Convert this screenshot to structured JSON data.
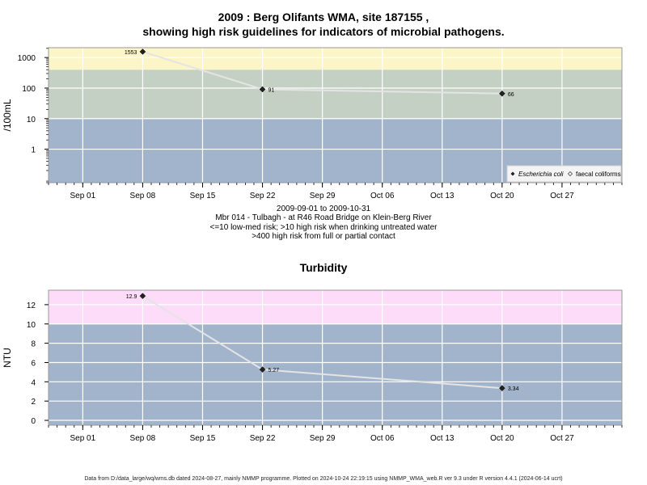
{
  "page": {
    "title_line1": "2009 : Berg Olifants WMA, site 187155 ,",
    "title_line2": "showing high risk guidelines for indicators of microbial pathogens.",
    "caption_line1": "2009-09-01 to 2009-10-31",
    "caption_line2": "Mbr 014 - Tulbagh - at R46 Road Bridge on Klein-Berg River",
    "caption_line3": "<=10 low-med risk; >10 high risk when drinking untreated water",
    "caption_line4": ">400 high risk from full or partial contact",
    "turbidity_title": "Turbidity",
    "footer": "Data from D:/data_large/wq/wms.db dated 2024-08-27, mainly NMMP programme. Plotted on 2024-10-24 22:19:15 using NMMP_WMA_web.R ver 9.3 under R version 4.4.1 (2024-06-14 ucrt)"
  },
  "chart_data": [
    {
      "type": "line",
      "title": "2009 : Berg Olifants WMA, site 187155 , showing high risk guidelines for indicators of microbial pathogens.",
      "ylabel": "/100mL",
      "xlabel": "",
      "yscale": "log",
      "x_tick_labels": [
        "Sep 01",
        "Sep 08",
        "Sep 15",
        "Sep 22",
        "Sep 29",
        "Oct 06",
        "Oct 13",
        "Oct 20",
        "Oct 27"
      ],
      "y_tick_labels": [
        "1",
        "10",
        "100",
        "1000"
      ],
      "xlim": [
        "2009-08-28",
        "2009-11-03"
      ],
      "ylim": [
        0.08,
        2100
      ],
      "bands": [
        {
          "from": 0.08,
          "to": 10,
          "color": "#a2b4cc"
        },
        {
          "from": 10,
          "to": 400,
          "color": "#c5d0c5"
        },
        {
          "from": 400,
          "to": 2100,
          "color": "#fcf5c8"
        }
      ],
      "series": [
        {
          "name": "Escherichia coli",
          "marker": "filled-diamond",
          "color": "#222222",
          "x": [
            "2009-09-08",
            "2009-09-22",
            "2009-10-20"
          ],
          "values": [
            1553,
            91,
            66
          ],
          "labels": [
            "1553",
            "91",
            "66"
          ]
        }
      ],
      "legend": {
        "position": "bottom-right",
        "entries": [
          "Escherichia coli",
          "faecal coliforms"
        ]
      },
      "grid": true
    },
    {
      "type": "line",
      "title": "Turbidity",
      "ylabel": "NTU",
      "xlabel": "",
      "x_tick_labels": [
        "Sep 01",
        "Sep 08",
        "Sep 15",
        "Sep 22",
        "Sep 29",
        "Oct 06",
        "Oct 13",
        "Oct 20",
        "Oct 27"
      ],
      "y_tick_labels": [
        "0",
        "2",
        "4",
        "6",
        "8",
        "10",
        "12"
      ],
      "xlim": [
        "2009-08-28",
        "2009-11-03"
      ],
      "ylim": [
        -0.5,
        13.5
      ],
      "bands": [
        {
          "from": -0.5,
          "to": 10,
          "color": "#a2b4cc"
        },
        {
          "from": 10,
          "to": 13.5,
          "color": "#fcdcf8"
        }
      ],
      "series": [
        {
          "marker": "filled-diamond",
          "color": "#222222",
          "x": [
            "2009-09-08",
            "2009-09-22",
            "2009-10-20"
          ],
          "values": [
            12.9,
            5.27,
            3.34
          ],
          "labels": [
            "12.9",
            "5.27",
            "3.34"
          ]
        }
      ],
      "grid": true
    }
  ]
}
